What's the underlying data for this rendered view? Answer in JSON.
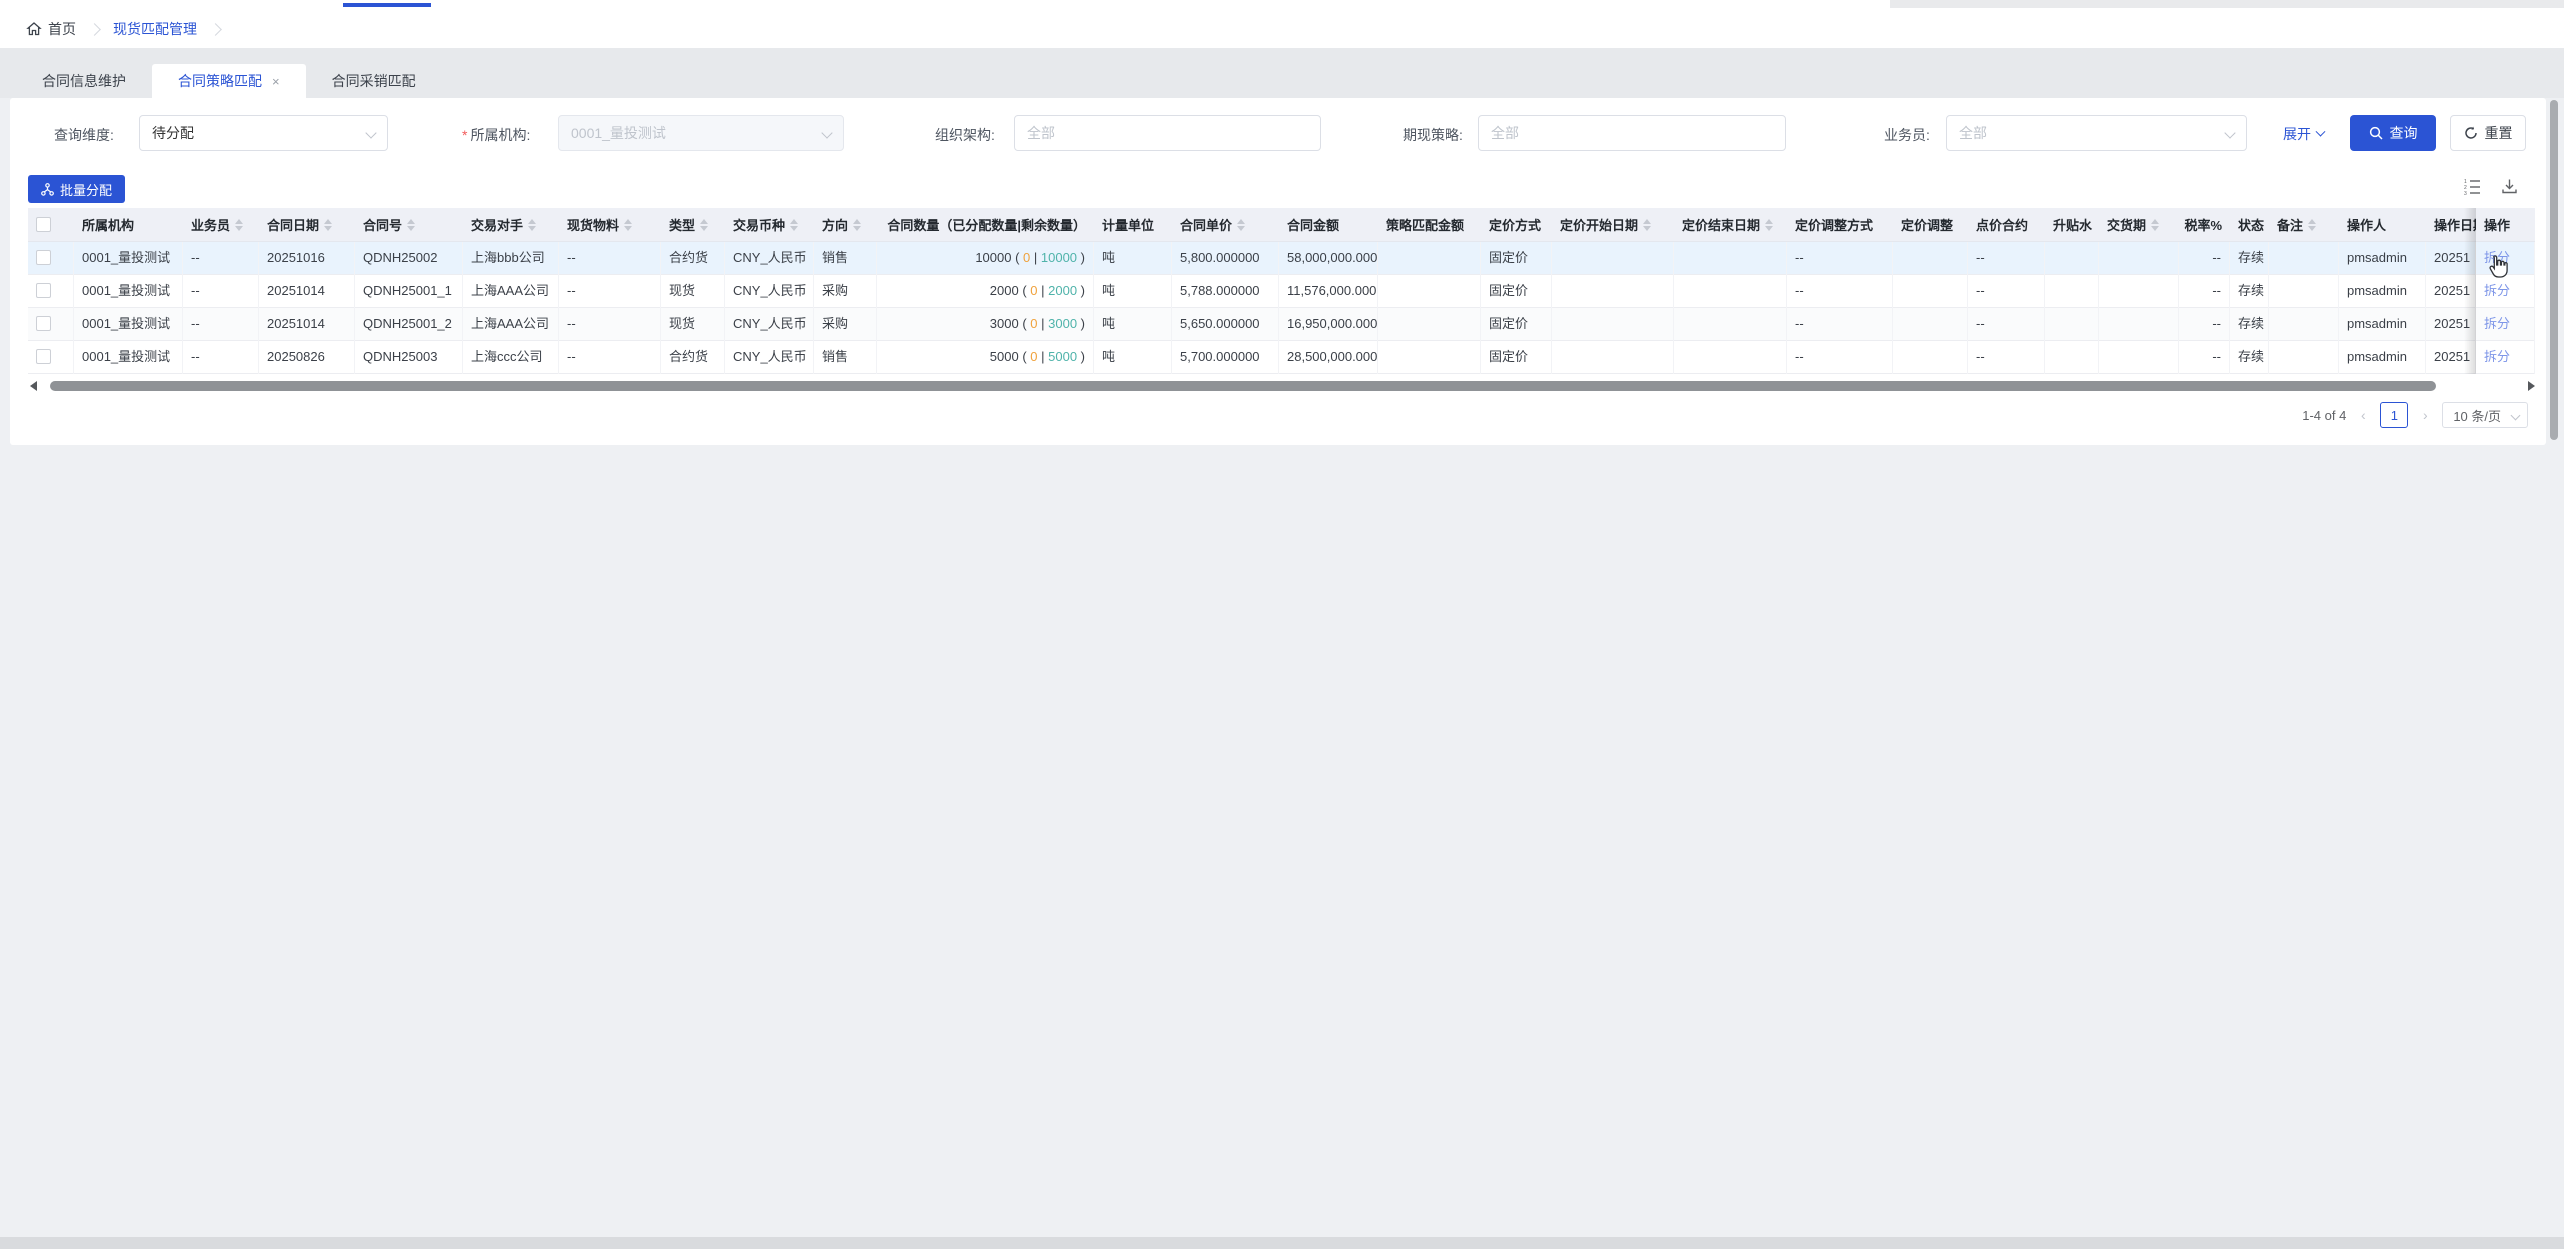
{
  "breadcrumb": {
    "home": "首页",
    "current": "现货匹配管理"
  },
  "tabs": [
    {
      "label": "合同信息维护",
      "active": false
    },
    {
      "label": "合同策略匹配",
      "active": true,
      "close": "×"
    },
    {
      "label": "合同采销匹配",
      "active": false
    }
  ],
  "filters": {
    "query_dim_label": "查询维度:",
    "query_dim_value": "待分配",
    "org_required": "*",
    "org_label": "所属机构:",
    "org_value": "0001_量投测试",
    "org_struct_label": "组织架构:",
    "org_struct_placeholder": "全部",
    "strategy_label": "期现策略:",
    "strategy_placeholder": "全部",
    "salesman_label": "业务员:",
    "salesman_placeholder": "全部",
    "expand_label": "展开",
    "search_label": "查询",
    "reset_label": "重置"
  },
  "toolbar": {
    "batch_allocate_label": "批量分配"
  },
  "table": {
    "columns": [
      {
        "key": "checkbox",
        "label": "",
        "sortable": false
      },
      {
        "key": "org",
        "label": "所属机构",
        "sortable": false
      },
      {
        "key": "salesman",
        "label": "业务员",
        "sortable": true
      },
      {
        "key": "date",
        "label": "合同日期",
        "sortable": true
      },
      {
        "key": "contract_no",
        "label": "合同号",
        "sortable": true
      },
      {
        "key": "counterparty",
        "label": "交易对手",
        "sortable": true
      },
      {
        "key": "material",
        "label": "现货物料",
        "sortable": true
      },
      {
        "key": "type",
        "label": "类型",
        "sortable": true
      },
      {
        "key": "currency",
        "label": "交易币种",
        "sortable": true
      },
      {
        "key": "direction",
        "label": "方向",
        "sortable": true
      },
      {
        "key": "qty",
        "label": "合同数量（已分配数量|剩余数量）",
        "sortable": false
      },
      {
        "key": "unit",
        "label": "计量单位",
        "sortable": false
      },
      {
        "key": "unit_price",
        "label": "合同单价",
        "sortable": true
      },
      {
        "key": "amount",
        "label": "合同金额",
        "sortable": false
      },
      {
        "key": "strategy_amount",
        "label": "策略匹配金额",
        "sortable": false
      },
      {
        "key": "pricing_method",
        "label": "定价方式",
        "sortable": false
      },
      {
        "key": "pricing_start",
        "label": "定价开始日期",
        "sortable": true
      },
      {
        "key": "pricing_end",
        "label": "定价结束日期",
        "sortable": true
      },
      {
        "key": "adjust_method",
        "label": "定价调整方式",
        "sortable": false
      },
      {
        "key": "adjust",
        "label": "定价调整",
        "sortable": false
      },
      {
        "key": "point_contract",
        "label": "点价合约",
        "sortable": false
      },
      {
        "key": "premium",
        "label": "升贴水",
        "sortable": false
      },
      {
        "key": "delivery",
        "label": "交货期",
        "sortable": true
      },
      {
        "key": "tax",
        "label": "税率%",
        "sortable": false
      },
      {
        "key": "status",
        "label": "状态",
        "sortable": false
      },
      {
        "key": "remark",
        "label": "备注",
        "sortable": true
      },
      {
        "key": "operator",
        "label": "操作人",
        "sortable": false
      },
      {
        "key": "op_date",
        "label": "操作日期",
        "sortable": false
      },
      {
        "key": "action",
        "label": "操作",
        "sortable": false
      }
    ],
    "rows": [
      {
        "org": "0001_量投测试",
        "salesman": "--",
        "date": "20251016",
        "contract_no": "QDNH25002",
        "counterparty": "上海bbb公司",
        "material": "--",
        "type": "合约货",
        "currency": "CNY_人民币",
        "direction": "销售",
        "qty_total": "10000",
        "qty_allocated": "0",
        "qty_remaining": "10000",
        "unit": "吨",
        "unit_price": "5,800.000000",
        "amount": "58,000,000.000",
        "strategy_amount": "",
        "pricing_method": "固定价",
        "pricing_start": "",
        "pricing_end": "",
        "adjust_method": "--",
        "adjust": "",
        "point_contract": "--",
        "premium": "",
        "delivery": "",
        "tax": "--",
        "status": "存续",
        "remark": "",
        "operator": "pmsadmin",
        "op_date": "20251",
        "action": "拆分"
      },
      {
        "org": "0001_量投测试",
        "salesman": "--",
        "date": "20251014",
        "contract_no": "QDNH25001_1",
        "counterparty": "上海AAA公司",
        "material": "--",
        "type": "现货",
        "currency": "CNY_人民币",
        "direction": "采购",
        "qty_total": "2000",
        "qty_allocated": "0",
        "qty_remaining": "2000",
        "unit": "吨",
        "unit_price": "5,788.000000",
        "amount": "11,576,000.000",
        "strategy_amount": "",
        "pricing_method": "固定价",
        "pricing_start": "",
        "pricing_end": "",
        "adjust_method": "--",
        "adjust": "",
        "point_contract": "--",
        "premium": "",
        "delivery": "",
        "tax": "--",
        "status": "存续",
        "remark": "",
        "operator": "pmsadmin",
        "op_date": "20251",
        "action": "拆分"
      },
      {
        "org": "0001_量投测试",
        "salesman": "--",
        "date": "20251014",
        "contract_no": "QDNH25001_2",
        "counterparty": "上海AAA公司",
        "material": "--",
        "type": "现货",
        "currency": "CNY_人民币",
        "direction": "采购",
        "qty_total": "3000",
        "qty_allocated": "0",
        "qty_remaining": "3000",
        "unit": "吨",
        "unit_price": "5,650.000000",
        "amount": "16,950,000.000",
        "strategy_amount": "",
        "pricing_method": "固定价",
        "pricing_start": "",
        "pricing_end": "",
        "adjust_method": "--",
        "adjust": "",
        "point_contract": "--",
        "premium": "",
        "delivery": "",
        "tax": "--",
        "status": "存续",
        "remark": "",
        "operator": "pmsadmin",
        "op_date": "20251",
        "action": "拆分"
      },
      {
        "org": "0001_量投测试",
        "salesman": "--",
        "date": "20250826",
        "contract_no": "QDNH25003",
        "counterparty": "上海ccc公司",
        "material": "--",
        "type": "合约货",
        "currency": "CNY_人民币",
        "direction": "销售",
        "qty_total": "5000",
        "qty_allocated": "0",
        "qty_remaining": "5000",
        "unit": "吨",
        "unit_price": "5,700.000000",
        "amount": "28,500,000.000",
        "strategy_amount": "",
        "pricing_method": "固定价",
        "pricing_start": "",
        "pricing_end": "",
        "adjust_method": "--",
        "adjust": "",
        "point_contract": "--",
        "premium": "",
        "delivery": "",
        "tax": "--",
        "status": "存续",
        "remark": "",
        "operator": "pmsadmin",
        "op_date": "20251",
        "action": "拆分"
      }
    ]
  },
  "pagination": {
    "range_text": "1-4 of 4",
    "prev": "‹",
    "page": "1",
    "next": "›",
    "page_size": "10 条/页"
  },
  "colors": {
    "primary": "#2b54d4",
    "action_link": "#7e96e8",
    "qty_allocated": "#f0a23c",
    "qty_remaining": "#4fb3aa",
    "row_hover": "#e9f3fd"
  }
}
